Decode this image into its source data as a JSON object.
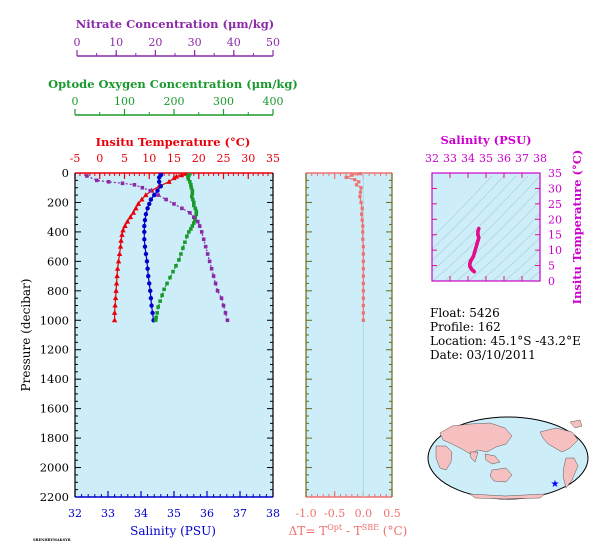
{
  "colors": {
    "temperature": "#e8000b",
    "salinity": "#0000cc",
    "oxygen": "#1a9a2e",
    "nitrate": "#8b2aa8",
    "delta": "#f07070",
    "ts": "#e0108c",
    "axis_olive": "#6b6b1a",
    "panel_bg": "#cdeef8"
  },
  "main": {
    "ylabel": "Pressure (decibar)",
    "yticks": [
      0,
      200,
      400,
      600,
      800,
      1000,
      1200,
      1400,
      1600,
      1800,
      2000,
      2200
    ],
    "nitrate_axis": {
      "label": "Nitrate Concentration (μm/kg)",
      "ticks": [
        0,
        10,
        20,
        30,
        40,
        50
      ],
      "range": [
        0,
        50
      ]
    },
    "oxygen_axis": {
      "label": "Optode Oxygen Concentration (μm/kg)",
      "ticks": [
        0,
        100,
        200,
        300,
        400
      ],
      "range": [
        0,
        400
      ]
    },
    "temp_axis": {
      "label": "Insitu Temperature (°C)",
      "ticks": [
        -5,
        0,
        5,
        10,
        15,
        20,
        25,
        30,
        35
      ],
      "range": [
        -5,
        35
      ]
    },
    "sal_axis": {
      "label": "Salinity (PSU)",
      "ticks": [
        32,
        33,
        34,
        35,
        36,
        37,
        38
      ],
      "range": [
        32,
        38
      ]
    }
  },
  "delta_panel": {
    "xlabel": "ΔT= T^Opt - T^SBE (°C)",
    "xticks": [
      "-1.0",
      "-0.5",
      "0.0",
      "0.5"
    ],
    "range": [
      -1.0,
      0.5
    ]
  },
  "ts_panel": {
    "xlabel": "Salinity (PSU)",
    "ylabel": "Insitu Temperature (°C)",
    "xticks": [
      32,
      33,
      34,
      35,
      36,
      37,
      38
    ],
    "yticks": [
      0,
      5,
      10,
      15,
      20,
      25,
      30,
      35
    ]
  },
  "info": {
    "float": "Float:  5426",
    "profile": "Profile:  162",
    "location": "Location:  45.1°S  -43.2°E",
    "date": "Date:  03/10/2011"
  },
  "map": {
    "marker_lon": -43.2,
    "marker_lat": -45.1
  },
  "footnote": "SBENHRYMAKSYR",
  "chart_data": [
    {
      "type": "line",
      "title": "",
      "ylabel": "Pressure (decibar)",
      "ylim": [
        2200,
        0
      ],
      "series": [
        {
          "name": "Insitu Temperature (°C)",
          "xaxis": "top",
          "xlim": [
            -5,
            35
          ],
          "points": [
            [
              17.5,
              5
            ],
            [
              16.5,
              15
            ],
            [
              15.5,
              25
            ],
            [
              15,
              35
            ],
            [
              14,
              60
            ],
            [
              12,
              90
            ],
            [
              10.5,
              120
            ],
            [
              9.3,
              150
            ],
            [
              8.5,
              180
            ],
            [
              7.8,
              210
            ],
            [
              7.3,
              240
            ],
            [
              6.8,
              270
            ],
            [
              6.2,
              300
            ],
            [
              5.6,
              330
            ],
            [
              5.1,
              360
            ],
            [
              4.7,
              390
            ],
            [
              4.5,
              420
            ],
            [
              4.3,
              460
            ],
            [
              4.2,
              500
            ],
            [
              4.0,
              550
            ],
            [
              3.8,
              600
            ],
            [
              3.6,
              650
            ],
            [
              3.5,
              700
            ],
            [
              3.4,
              750
            ],
            [
              3.3,
              800
            ],
            [
              3.2,
              850
            ],
            [
              3.1,
              900
            ],
            [
              3.0,
              950
            ],
            [
              3.0,
              1000
            ]
          ]
        },
        {
          "name": "Salinity (PSU)",
          "xaxis": "bottom",
          "xlim": [
            32,
            38
          ],
          "points": [
            [
              34.6,
              5
            ],
            [
              34.6,
              15
            ],
            [
              34.55,
              30
            ],
            [
              34.55,
              60
            ],
            [
              34.6,
              90
            ],
            [
              34.5,
              120
            ],
            [
              34.4,
              150
            ],
            [
              34.3,
              180
            ],
            [
              34.25,
              210
            ],
            [
              34.2,
              240
            ],
            [
              34.15,
              280
            ],
            [
              34.12,
              320
            ],
            [
              34.1,
              360
            ],
            [
              34.1,
              400
            ],
            [
              34.1,
              450
            ],
            [
              34.12,
              500
            ],
            [
              34.15,
              550
            ],
            [
              34.18,
              600
            ],
            [
              34.2,
              650
            ],
            [
              34.22,
              700
            ],
            [
              34.25,
              750
            ],
            [
              34.28,
              800
            ],
            [
              34.3,
              850
            ],
            [
              34.32,
              900
            ],
            [
              34.35,
              950
            ],
            [
              34.38,
              1000
            ]
          ]
        },
        {
          "name": "Optode Oxygen Concentration (μm/kg)",
          "xaxis": "oxygen",
          "xlim": [
            0,
            400
          ],
          "points": [
            [
              232,
              5
            ],
            [
              230,
              15
            ],
            [
              228,
              25
            ],
            [
              229,
              40
            ],
            [
              232,
              60
            ],
            [
              234,
              80
            ],
            [
              235,
              100
            ],
            [
              237,
              120
            ],
            [
              237,
              140
            ],
            [
              236,
              160
            ],
            [
              238,
              180
            ],
            [
              240,
              200
            ],
            [
              240,
              220
            ],
            [
              243,
              240
            ],
            [
              245,
              260
            ],
            [
              245,
              280
            ],
            [
              243,
              300
            ],
            [
              242,
              320
            ],
            [
              240,
              340
            ],
            [
              237,
              360
            ],
            [
              234,
              380
            ],
            [
              230,
              400
            ],
            [
              226,
              430
            ],
            [
              222,
              470
            ],
            [
              218,
              510
            ],
            [
              214,
              550
            ],
            [
              210,
              590
            ],
            [
              204,
              630
            ],
            [
              198,
              670
            ],
            [
              192,
              710
            ],
            [
              186,
              750
            ],
            [
              180,
              790
            ],
            [
              176,
              830
            ],
            [
              172,
              870
            ],
            [
              168,
              910
            ],
            [
              166,
              950
            ],
            [
              164,
              980
            ],
            [
              163,
              1000
            ]
          ]
        },
        {
          "name": "Nitrate Concentration (μm/kg)",
          "xaxis": "nitrate",
          "xlim": [
            0,
            50
          ],
          "points": [
            [
              3,
              20
            ],
            [
              5.5,
              50
            ],
            [
              8.5,
              60
            ],
            [
              12,
              70
            ],
            [
              15,
              80
            ],
            [
              17,
              100
            ],
            [
              19,
              120
            ],
            [
              21,
              150
            ],
            [
              23,
              180
            ],
            [
              25,
              210
            ],
            [
              27,
              240
            ],
            [
              29,
              270
            ],
            [
              30,
              300
            ],
            [
              31,
              330
            ],
            [
              31.5,
              360
            ],
            [
              32,
              400
            ],
            [
              32.5,
              450
            ],
            [
              33,
              500
            ],
            [
              33.5,
              550
            ],
            [
              34,
              600
            ],
            [
              34.5,
              650
            ],
            [
              35,
              700
            ],
            [
              35.5,
              750
            ],
            [
              36,
              800
            ],
            [
              37,
              850
            ],
            [
              37.5,
              900
            ],
            [
              38,
              950
            ],
            [
              38.5,
              1000
            ]
          ]
        }
      ]
    },
    {
      "type": "line",
      "title": "",
      "xlabel": "ΔT= T^Opt - T^SBE (°C)",
      "xlim": [
        -1.0,
        0.5
      ],
      "ylim": [
        2200,
        0
      ],
      "series": [
        {
          "name": "ΔT",
          "points": [
            [
              -0.05,
              5
            ],
            [
              -0.2,
              15
            ],
            [
              -0.3,
              30
            ],
            [
              -0.15,
              45
            ],
            [
              -0.08,
              60
            ],
            [
              -0.12,
              80
            ],
            [
              -0.04,
              100
            ],
            [
              -0.05,
              130
            ],
            [
              -0.06,
              160
            ],
            [
              -0.04,
              200
            ],
            [
              -0.02,
              240
            ],
            [
              -0.03,
              280
            ],
            [
              -0.02,
              320
            ],
            [
              -0.01,
              360
            ],
            [
              -0.01,
              400
            ],
            [
              -0.01,
              450
            ],
            [
              0.0,
              500
            ],
            [
              0.0,
              550
            ],
            [
              0.0,
              600
            ],
            [
              0.0,
              650
            ],
            [
              0.0,
              700
            ],
            [
              0.0,
              750
            ],
            [
              0.0,
              800
            ],
            [
              0.0,
              850
            ],
            [
              0.0,
              900
            ],
            [
              0.0,
              950
            ],
            [
              0.0,
              1000
            ]
          ]
        }
      ]
    },
    {
      "type": "scatter",
      "title": "",
      "xlabel": "Salinity (PSU)",
      "ylabel": "Insitu Temperature (°C)",
      "xlim": [
        32,
        38
      ],
      "ylim": [
        0,
        35
      ],
      "series": [
        {
          "name": "T-S",
          "points": [
            [
              34.6,
              17.0
            ],
            [
              34.55,
              16.0
            ],
            [
              34.55,
              15.0
            ],
            [
              34.6,
              14.0
            ],
            [
              34.55,
              13.0
            ],
            [
              34.5,
              12.0
            ],
            [
              34.45,
              11.0
            ],
            [
              34.4,
              10.0
            ],
            [
              34.35,
              9.0
            ],
            [
              34.3,
              8.0
            ],
            [
              34.25,
              7.5
            ],
            [
              34.2,
              7.0
            ],
            [
              34.15,
              6.5
            ],
            [
              34.12,
              6.0
            ],
            [
              34.1,
              5.5
            ],
            [
              34.1,
              5.0
            ],
            [
              34.12,
              4.6
            ],
            [
              34.15,
              4.3
            ],
            [
              34.18,
              4.0
            ],
            [
              34.22,
              3.7
            ],
            [
              34.26,
              3.5
            ],
            [
              34.3,
              3.3
            ],
            [
              34.35,
              3.0
            ]
          ]
        }
      ]
    }
  ]
}
